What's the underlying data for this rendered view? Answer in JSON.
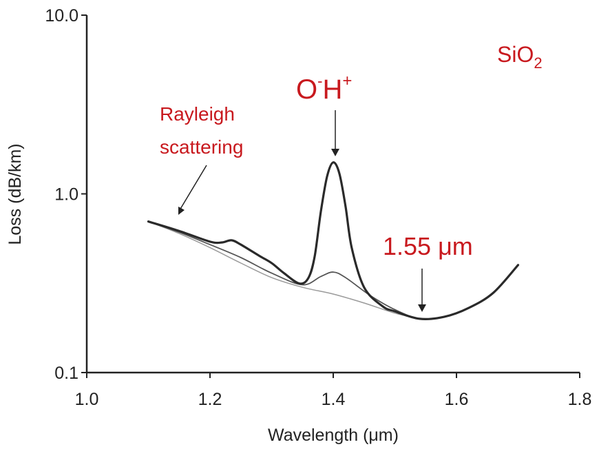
{
  "chart_data": {
    "type": "line",
    "xlabel": "Wavelength (μm)",
    "ylabel": "Loss (dB/km)",
    "xlim": [
      1.0,
      1.8
    ],
    "ylim": [
      0.1,
      10.0
    ],
    "y_scale": "log",
    "grid": false,
    "x_ticks": [
      "1.0",
      "1.2",
      "1.4",
      "1.6",
      "1.8"
    ],
    "y_ticks": [
      "0.1",
      "1.0",
      "10.0"
    ],
    "x_tick_values": [
      1.0,
      1.2,
      1.4,
      1.6,
      1.8
    ],
    "y_tick_values": [
      0.1,
      1.0,
      10.0
    ],
    "series": [
      {
        "color": "#2a2a2a",
        "points": [
          [
            1.1,
            0.7
          ],
          [
            1.15,
            0.62
          ],
          [
            1.2,
            0.54
          ],
          [
            1.22,
            0.535
          ],
          [
            1.235,
            0.55
          ],
          [
            1.25,
            0.52
          ],
          [
            1.28,
            0.45
          ],
          [
            1.3,
            0.41
          ],
          [
            1.32,
            0.36
          ],
          [
            1.345,
            0.315
          ],
          [
            1.36,
            0.34
          ],
          [
            1.37,
            0.45
          ],
          [
            1.38,
            0.8
          ],
          [
            1.39,
            1.25
          ],
          [
            1.4,
            1.5
          ],
          [
            1.41,
            1.3
          ],
          [
            1.42,
            0.85
          ],
          [
            1.43,
            0.5
          ],
          [
            1.45,
            0.3
          ],
          [
            1.48,
            0.235
          ],
          [
            1.5,
            0.22
          ],
          [
            1.54,
            0.2
          ],
          [
            1.58,
            0.205
          ],
          [
            1.62,
            0.23
          ],
          [
            1.66,
            0.28
          ],
          [
            1.7,
            0.4
          ]
        ]
      },
      {
        "color": "#555555",
        "points": [
          [
            1.1,
            0.7
          ],
          [
            1.15,
            0.61
          ],
          [
            1.2,
            0.52
          ],
          [
            1.25,
            0.44
          ],
          [
            1.3,
            0.36
          ],
          [
            1.35,
            0.31
          ],
          [
            1.38,
            0.345
          ],
          [
            1.4,
            0.365
          ],
          [
            1.42,
            0.34
          ],
          [
            1.46,
            0.27
          ],
          [
            1.5,
            0.225
          ],
          [
            1.54,
            0.2
          ],
          [
            1.58,
            0.205
          ],
          [
            1.62,
            0.23
          ],
          [
            1.66,
            0.28
          ],
          [
            1.7,
            0.4
          ]
        ]
      },
      {
        "color": "#9a9a9a",
        "points": [
          [
            1.1,
            0.7
          ],
          [
            1.15,
            0.6
          ],
          [
            1.2,
            0.5
          ],
          [
            1.25,
            0.41
          ],
          [
            1.3,
            0.34
          ],
          [
            1.35,
            0.3
          ],
          [
            1.4,
            0.275
          ],
          [
            1.45,
            0.245
          ],
          [
            1.5,
            0.215
          ],
          [
            1.54,
            0.2
          ]
        ]
      }
    ],
    "annotations": {
      "rayleigh_line1": "Rayleigh",
      "rayleigh_line2": "scattering",
      "oh_o": "O",
      "oh_minus": "-",
      "oh_h": "H",
      "oh_plus": "+",
      "wavelength_label": "1.55 μm",
      "sio2_main": "SiO",
      "sio2_sub": "2"
    },
    "annotation_color": "#c8191e"
  }
}
